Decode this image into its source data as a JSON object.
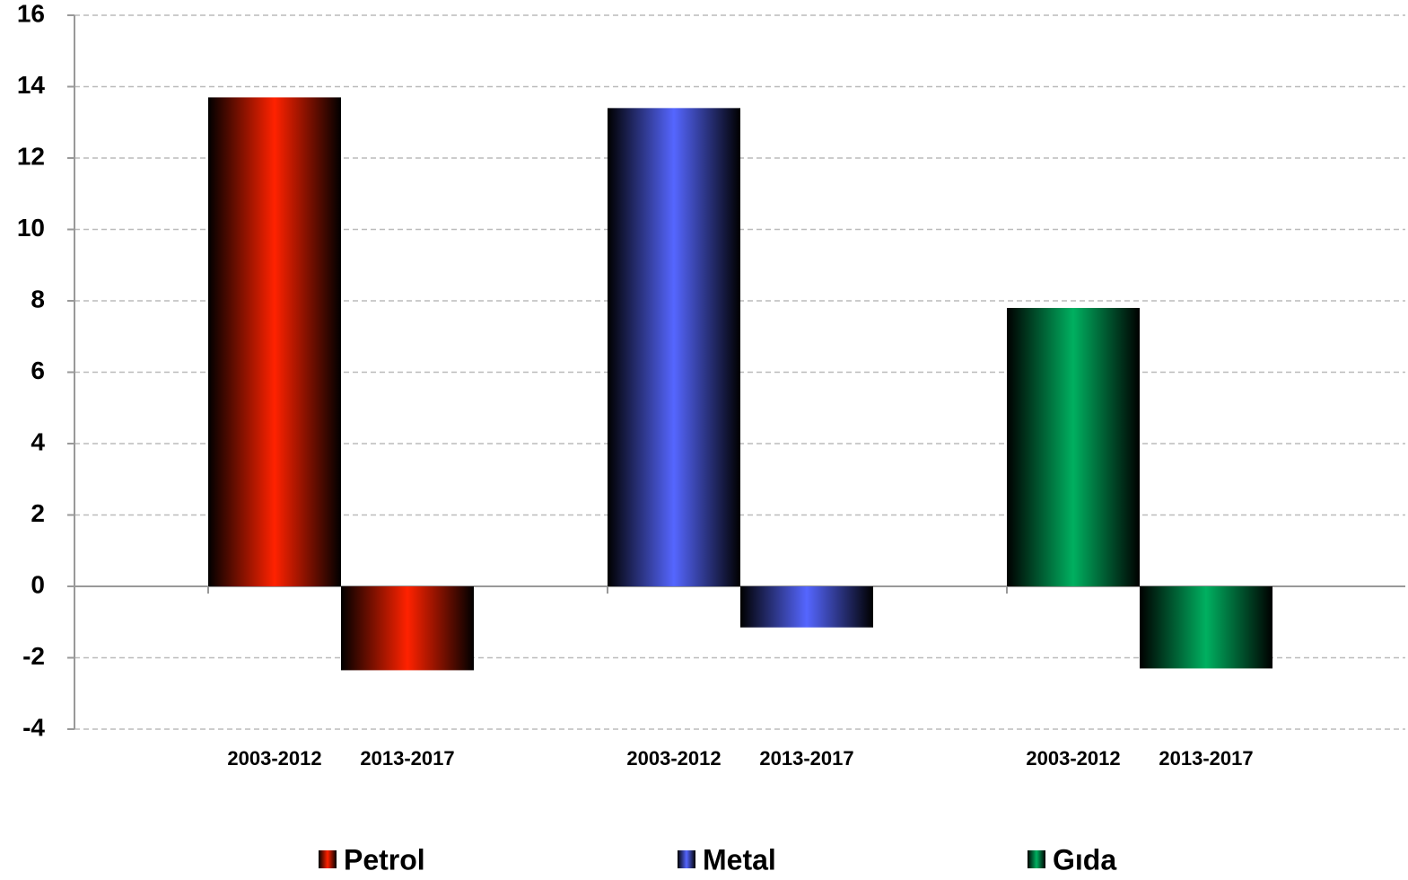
{
  "chart_data": {
    "type": "bar",
    "categories": [
      "2003-2012",
      "2013-2017"
    ],
    "series": [
      {
        "name": "Petrol",
        "color": "#ff2200",
        "values": [
          13.7,
          -2.35
        ]
      },
      {
        "name": "Metal",
        "color": "#5566ff",
        "values": [
          13.4,
          -1.15
        ]
      },
      {
        "name": "Gıda",
        "color": "#00b060",
        "values": [
          7.8,
          -2.3
        ]
      }
    ],
    "ylim": [
      -4,
      16
    ],
    "yticks": [
      -4,
      -2,
      0,
      2,
      4,
      6,
      8,
      10,
      12,
      14,
      16
    ],
    "grid": true
  }
}
